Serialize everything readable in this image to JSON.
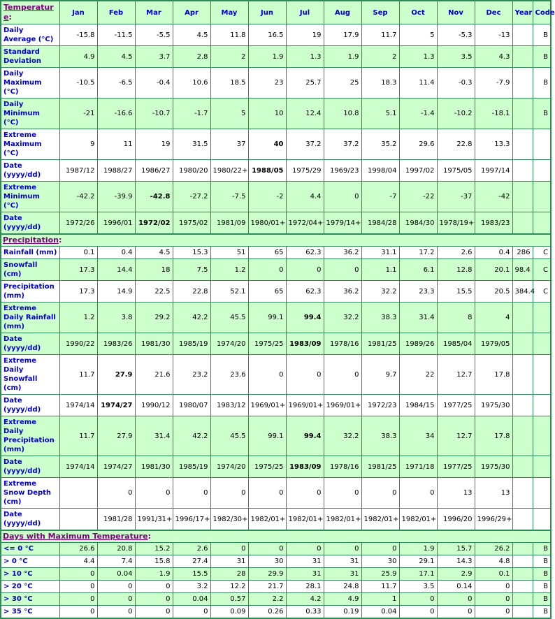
{
  "punct": {
    "colon": ":"
  },
  "colors": {
    "shade_green": "#ccffcc",
    "border_green": "#2e8b57",
    "label_blue": "#0000cc",
    "section_purple": "#800080",
    "value_black": "#000000"
  },
  "columns": [
    "Jan",
    "Feb",
    "Mar",
    "Apr",
    "May",
    "Jun",
    "Jul",
    "Aug",
    "Sep",
    "Oct",
    "Nov",
    "Dec",
    "Year",
    "Code"
  ],
  "sections": [
    {
      "title": "Temperature",
      "rows": [
        {
          "label": "Daily Average (°C)",
          "values": [
            "-15.8",
            "-11.5",
            "-5.5",
            "4.5",
            "11.8",
            "16.5",
            "19",
            "17.9",
            "11.7",
            "5",
            "-5.3",
            "-13"
          ],
          "year": "",
          "code": "B",
          "shade": false,
          "bold": []
        },
        {
          "label": "Standard Deviation",
          "values": [
            "4.9",
            "4.5",
            "3.7",
            "2.8",
            "2",
            "1.9",
            "1.3",
            "1.9",
            "2",
            "1.3",
            "3.5",
            "4.3"
          ],
          "year": "",
          "code": "B",
          "shade": true,
          "bold": []
        },
        {
          "label": "Daily Maximum (°C)",
          "values": [
            "-10.5",
            "-6.5",
            "-0.4",
            "10.6",
            "18.5",
            "23",
            "25.7",
            "25",
            "18.3",
            "11.4",
            "-0.3",
            "-7.9"
          ],
          "year": "",
          "code": "B",
          "shade": false,
          "bold": []
        },
        {
          "label": "Daily Minimum (°C)",
          "values": [
            "-21",
            "-16.6",
            "-10.7",
            "-1.7",
            "5",
            "10",
            "12.4",
            "10.8",
            "5.1",
            "-1.4",
            "-10.2",
            "-18.1"
          ],
          "year": "",
          "code": "B",
          "shade": true,
          "bold": []
        },
        {
          "label": "Extreme Maximum (°C)",
          "values": [
            "9",
            "11",
            "19",
            "31.5",
            "37",
            "40",
            "37.2",
            "37.2",
            "35.2",
            "29.6",
            "22.8",
            "13.3"
          ],
          "year": "",
          "code": "",
          "shade": false,
          "bold": [
            5
          ]
        },
        {
          "label": "Date (yyyy/dd)",
          "values": [
            "1987/12",
            "1988/27",
            "1986/27",
            "1980/20",
            "1980/22+",
            "1988/05",
            "1975/29",
            "1969/23",
            "1998/04",
            "1997/02",
            "1975/05",
            "1997/14"
          ],
          "year": "",
          "code": "",
          "shade": false,
          "bold": [
            5
          ]
        },
        {
          "label": "Extreme Minimum (°C)",
          "values": [
            "-42.2",
            "-39.9",
            "-42.8",
            "-27.2",
            "-7.5",
            "-2",
            "4.4",
            "0",
            "-7",
            "-22",
            "-37",
            "-42"
          ],
          "year": "",
          "code": "",
          "shade": true,
          "bold": [
            2
          ]
        },
        {
          "label": "Date (yyyy/dd)",
          "values": [
            "1972/26",
            "1996/01",
            "1972/02",
            "1975/02",
            "1981/09",
            "1980/01+",
            "1972/04+",
            "1979/14+",
            "1984/28",
            "1984/30",
            "1978/19+",
            "1983/23"
          ],
          "year": "",
          "code": "",
          "shade": true,
          "bold": [
            2
          ]
        }
      ]
    },
    {
      "title": "Precipitation",
      "rows": [
        {
          "label": "Rainfall (mm)",
          "values": [
            "0.1",
            "0.4",
            "4.5",
            "15.3",
            "51",
            "65",
            "62.3",
            "36.2",
            "31.1",
            "17.2",
            "2.6",
            "0.4"
          ],
          "year": "286",
          "code": "C",
          "shade": false,
          "bold": []
        },
        {
          "label": "Snowfall (cm)",
          "values": [
            "17.3",
            "14.4",
            "18",
            "7.5",
            "1.2",
            "0",
            "0",
            "0",
            "1.1",
            "6.1",
            "12.8",
            "20.1"
          ],
          "year": "98.4",
          "code": "C",
          "shade": true,
          "bold": []
        },
        {
          "label": "Precipitation (mm)",
          "values": [
            "17.3",
            "14.9",
            "22.5",
            "22.8",
            "52.1",
            "65",
            "62.3",
            "36.2",
            "32.2",
            "23.3",
            "15.5",
            "20.5"
          ],
          "year": "384.4",
          "code": "C",
          "shade": false,
          "bold": []
        },
        {
          "label": "Extreme Daily Rainfall (mm)",
          "values": [
            "1.2",
            "3.8",
            "29.2",
            "42.2",
            "45.5",
            "99.1",
            "99.4",
            "32.2",
            "38.3",
            "31.4",
            "8",
            "4"
          ],
          "year": "",
          "code": "",
          "shade": true,
          "bold": [
            6
          ]
        },
        {
          "label": "Date (yyyy/dd)",
          "values": [
            "1990/22",
            "1983/26",
            "1981/30",
            "1985/19",
            "1974/20",
            "1975/25",
            "1983/09",
            "1978/16",
            "1981/25",
            "1989/26",
            "1985/04",
            "1979/05"
          ],
          "year": "",
          "code": "",
          "shade": true,
          "bold": [
            6
          ]
        },
        {
          "label": "Extreme Daily Snowfall (cm)",
          "values": [
            "11.7",
            "27.9",
            "21.6",
            "23.2",
            "23.6",
            "0",
            "0",
            "0",
            "9.7",
            "22",
            "12.7",
            "17.8"
          ],
          "year": "",
          "code": "",
          "shade": false,
          "bold": [
            1
          ]
        },
        {
          "label": "Date (yyyy/dd)",
          "values": [
            "1974/14",
            "1974/27",
            "1990/12",
            "1980/07",
            "1983/12",
            "1969/01+",
            "1969/01+",
            "1969/01+",
            "1972/23",
            "1984/15",
            "1977/25",
            "1975/30"
          ],
          "year": "",
          "code": "",
          "shade": false,
          "bold": [
            1
          ]
        },
        {
          "label": "Extreme Daily Precipitation (mm)",
          "values": [
            "11.7",
            "27.9",
            "31.4",
            "42.2",
            "45.5",
            "99.1",
            "99.4",
            "32.2",
            "38.3",
            "34",
            "12.7",
            "17.8"
          ],
          "year": "",
          "code": "",
          "shade": true,
          "bold": [
            6
          ]
        },
        {
          "label": "Date (yyyy/dd)",
          "values": [
            "1974/14",
            "1974/27",
            "1981/30",
            "1985/19",
            "1974/20",
            "1975/25",
            "1983/09",
            "1978/16",
            "1981/25",
            "1971/18",
            "1977/25",
            "1975/30"
          ],
          "year": "",
          "code": "",
          "shade": true,
          "bold": [
            6
          ]
        },
        {
          "label": "Extreme Snow Depth (cm)",
          "values": [
            "",
            "0",
            "0",
            "0",
            "0",
            "0",
            "0",
            "0",
            "0",
            "0",
            "13",
            "13"
          ],
          "year": "",
          "code": "",
          "shade": false,
          "bold": []
        },
        {
          "label": "Date (yyyy/dd)",
          "values": [
            "",
            "1981/28",
            "1991/31+",
            "1996/17+",
            "1982/30+",
            "1982/01+",
            "1982/01+",
            "1982/01+",
            "1982/01+",
            "1982/01+",
            "1996/20",
            "1996/29+"
          ],
          "year": "",
          "code": "",
          "shade": false,
          "bold": []
        }
      ]
    },
    {
      "title": "Days with Maximum Temperature",
      "rows": [
        {
          "label": "<= 0 °C",
          "values": [
            "26.6",
            "20.8",
            "15.2",
            "2.6",
            "0",
            "0",
            "0",
            "0",
            "0",
            "1.9",
            "15.7",
            "26.2"
          ],
          "year": "",
          "code": "B",
          "shade": true,
          "bold": []
        },
        {
          "label": "> 0 °C",
          "values": [
            "4.4",
            "7.4",
            "15.8",
            "27.4",
            "31",
            "30",
            "31",
            "31",
            "30",
            "29.1",
            "14.3",
            "4.8"
          ],
          "year": "",
          "code": "B",
          "shade": false,
          "bold": []
        },
        {
          "label": "> 10 °C",
          "values": [
            "0",
            "0.04",
            "1.9",
            "15.5",
            "28",
            "29.9",
            "31",
            "31",
            "25.9",
            "17.1",
            "2.9",
            "0.1"
          ],
          "year": "",
          "code": "B",
          "shade": true,
          "bold": []
        },
        {
          "label": "> 20 °C",
          "values": [
            "0",
            "0",
            "0",
            "3.2",
            "12.2",
            "21.7",
            "28.1",
            "24.8",
            "11.7",
            "3.5",
            "0.14",
            "0"
          ],
          "year": "",
          "code": "B",
          "shade": false,
          "bold": []
        },
        {
          "label": "> 30 °C",
          "values": [
            "0",
            "0",
            "0",
            "0.04",
            "0.57",
            "2.2",
            "4.2",
            "4.9",
            "1",
            "0",
            "0",
            "0"
          ],
          "year": "",
          "code": "B",
          "shade": true,
          "bold": []
        },
        {
          "label": "> 35 °C",
          "values": [
            "0",
            "0",
            "0",
            "0",
            "0.09",
            "0.26",
            "0.33",
            "0.19",
            "0.04",
            "0",
            "0",
            "0"
          ],
          "year": "",
          "code": "B",
          "shade": false,
          "bold": []
        }
      ]
    }
  ]
}
